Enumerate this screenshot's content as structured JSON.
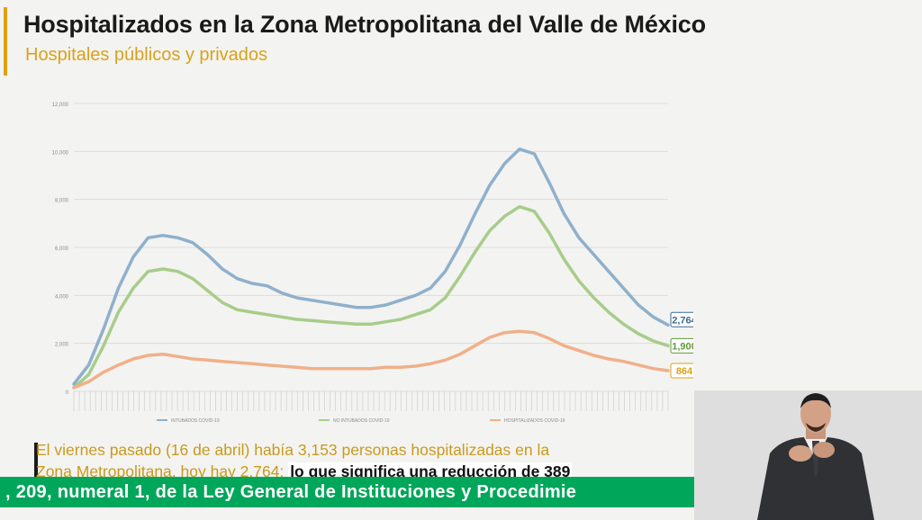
{
  "header": {
    "title": "Hospitalizados en la Zona Metropolitana del Valle de México",
    "subtitle": "Hospitales públicos y privados"
  },
  "chart_data": {
    "type": "line",
    "ylim": [
      0,
      12000
    ],
    "yticks": [
      "12,000",
      "10,000",
      "8,000",
      "6,000",
      "4,000",
      "2,000",
      "0"
    ],
    "grid": true,
    "legend_position": "bottom",
    "series": [
      {
        "name": "INTUBADOS COVID-19",
        "color": "#8fb0cc",
        "label_color": "#3d6a92",
        "end_label": "2,764",
        "values": [
          300,
          1100,
          2600,
          4300,
          5600,
          6400,
          6500,
          6400,
          6200,
          5700,
          5100,
          4700,
          4500,
          4400,
          4100,
          3900,
          3800,
          3700,
          3600,
          3500,
          3500,
          3600,
          3800,
          4000,
          4300,
          5000,
          6100,
          7400,
          8600,
          9500,
          10100,
          9900,
          8700,
          7400,
          6400,
          5700,
          5000,
          4300,
          3600,
          3100,
          2764
        ]
      },
      {
        "name": "NO INTUBADOS COVID-19",
        "color": "#a8cc8a",
        "label_color": "#5e9a3a",
        "end_label": "1,900",
        "values": [
          150,
          700,
          1900,
          3300,
          4300,
          5000,
          5100,
          5000,
          4700,
          4200,
          3700,
          3400,
          3300,
          3200,
          3100,
          3000,
          2950,
          2900,
          2850,
          2800,
          2800,
          2900,
          3000,
          3200,
          3400,
          3900,
          4800,
          5800,
          6700,
          7300,
          7700,
          7500,
          6600,
          5500,
          4600,
          3900,
          3300,
          2800,
          2400,
          2100,
          1900
        ]
      },
      {
        "name": "HOSPITALIZADOS COVID-19",
        "color": "#f0b089",
        "label_color": "#d8a21a",
        "end_label": "864",
        "values": [
          150,
          400,
          800,
          1100,
          1350,
          1500,
          1550,
          1450,
          1350,
          1300,
          1250,
          1200,
          1150,
          1100,
          1050,
          1000,
          950,
          950,
          950,
          950,
          950,
          1000,
          1000,
          1050,
          1150,
          1300,
          1550,
          1900,
          2250,
          2450,
          2500,
          2450,
          2200,
          1900,
          1700,
          1500,
          1350,
          1250,
          1100,
          950,
          864
        ]
      }
    ]
  },
  "caption": {
    "line1": "El viernes pasado (16 de abril) había 3,153 personas hospitalizadas en la",
    "line2": "Zona Metropolitana, hoy hay 2,764: ",
    "highlight": "lo que significa una reducción de 389"
  },
  "ticker": {
    "text": ", 209, numeral 1, de la Ley General de Instituciones y Procedimie"
  }
}
